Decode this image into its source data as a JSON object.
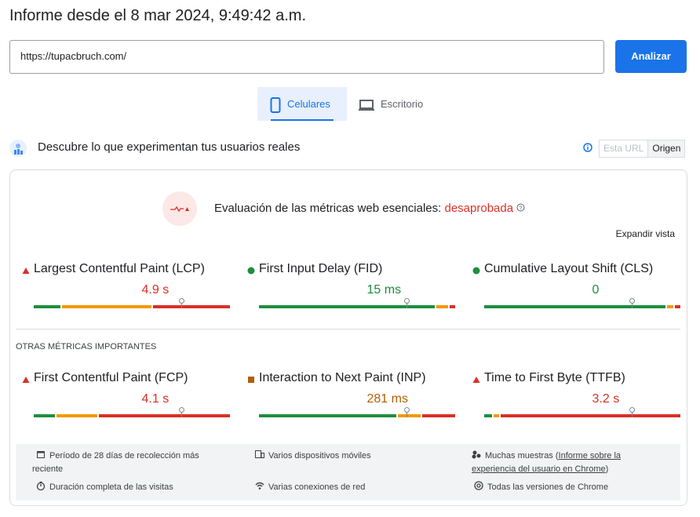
{
  "header": {
    "title": "Informe desde el 8 mar 2024, 9:49:42 a.m."
  },
  "url_input": "https://tupacbruch.com/",
  "analyze_button": "Analizar",
  "tabs": [
    "Celulares",
    "Escritorio"
  ],
  "section": {
    "title": "Descubre lo que experimentan tus usuarios reales",
    "toggle": [
      "Esta URL",
      "Origen"
    ]
  },
  "assessment": {
    "label": "Evaluación de las métricas web esenciales:",
    "status": "desaprobada",
    "expand": "Expandir vista"
  },
  "core_metrics": [
    {
      "name": "Largest Contentful Paint (LCP)",
      "value": "4.9 s",
      "icon": "triangle",
      "color": "#d93025",
      "distribution": [
        14,
        46,
        40
      ]
    },
    {
      "name": "First Input Delay (FID)",
      "value": "15 ms",
      "icon": "circle",
      "color": "#1e8e3e",
      "distribution": [
        91,
        6,
        3
      ]
    },
    {
      "name": "Cumulative Layout Shift (CLS)",
      "value": "0",
      "icon": "circle",
      "color": "#1e8e3e",
      "distribution": [
        94,
        3,
        3
      ]
    }
  ],
  "other_heading": "OTRAS MÉTRICAS IMPORTANTES",
  "other_metrics": [
    {
      "name": "First Contentful Paint (FCP)",
      "value": "4.1 s",
      "icon": "triangle",
      "color": "#d93025",
      "distribution": [
        11,
        21,
        68
      ]
    },
    {
      "name": "Interaction to Next Paint (INP)",
      "value": "281 ms",
      "icon": "square",
      "color": "#b06000",
      "distribution": [
        71,
        12,
        17
      ]
    },
    {
      "name": "Time to First Byte (TTFB)",
      "value": "3.2 s",
      "icon": "triangle",
      "color": "#d93025",
      "distribution": [
        4,
        3,
        93
      ]
    }
  ],
  "footer_items": [
    {
      "text": "Período de 28 días de recolección más reciente"
    },
    {
      "text": "Varios dispositivos móviles"
    },
    {
      "text": "Muchas muestras (",
      "link": "Informe sobre la experiencia del usuario en Chrome",
      "after": ")"
    },
    {
      "text": "Duración completa de las visitas"
    },
    {
      "text": "Varias conexiones de red"
    },
    {
      "text": "Todas las versiones de Chrome"
    }
  ]
}
